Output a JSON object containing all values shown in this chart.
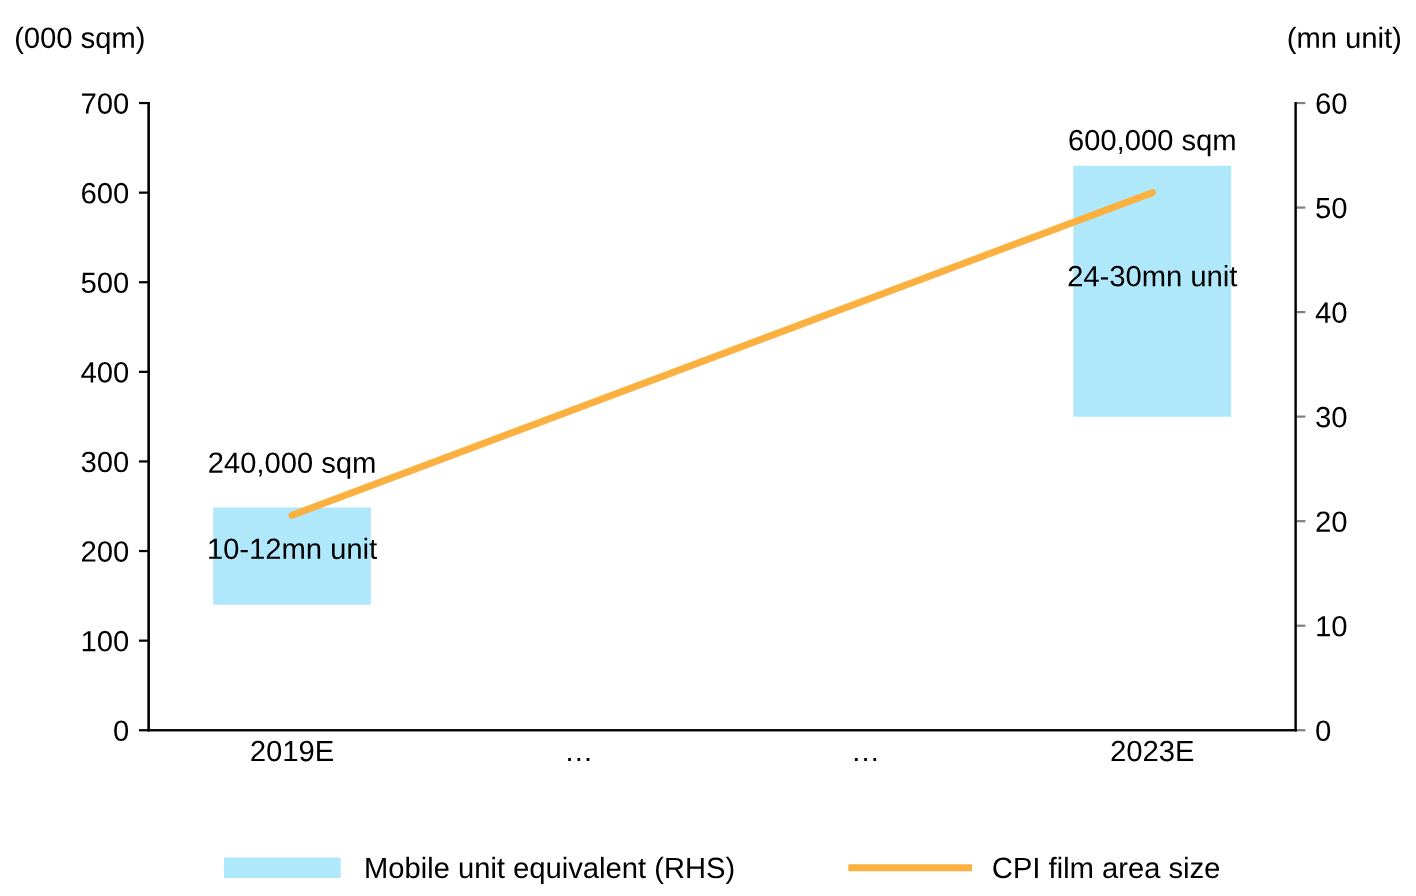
{
  "chart_data": {
    "type": "line",
    "categories": [
      "2019E",
      "…",
      "…",
      "2023E"
    ],
    "ylabel": "(000 sqm)",
    "y2label": "(mn unit)",
    "ylim": [
      0,
      700
    ],
    "yticks": [
      0,
      100,
      200,
      300,
      400,
      500,
      600,
      700
    ],
    "y2lim": [
      0,
      60
    ],
    "y2ticks": [
      0,
      10,
      20,
      30,
      40,
      50,
      60
    ],
    "series": [
      {
        "name": "Mobile unit equivalent (RHS)",
        "type": "bar",
        "axis": "y2",
        "color": "#aee8fa",
        "base": [
          12,
          null,
          null,
          30
        ],
        "values": [
          9.3,
          null,
          null,
          24
        ]
      },
      {
        "name": "CPI film area size",
        "color": "#fbb040",
        "values": [
          240,
          null,
          null,
          600
        ]
      }
    ],
    "annotations": [
      {
        "text": "240,000 sqm",
        "x": "2019E",
        "y": 240
      },
      "10-12mn unit",
      {
        "text": "600,000 sqm",
        "x": "2023E",
        "y": 600
      },
      "24-30mn unit"
    ],
    "legend": "bottom",
    "grid": false
  }
}
